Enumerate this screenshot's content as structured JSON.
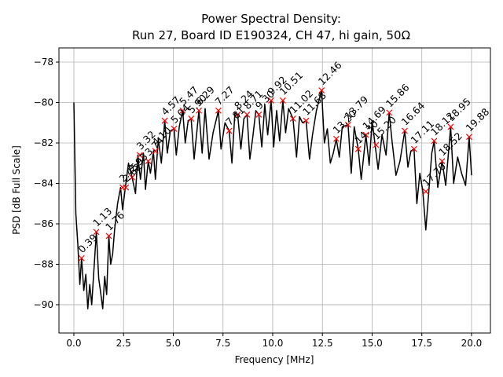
{
  "chart_data": {
    "type": "line",
    "title": "Power Spectral Density:",
    "subtitle": "Run 27, Board ID E190324, CH 47, hi gain, 50Ω",
    "xlabel": "Frequency [MHz]",
    "ylabel": "PSD [dB Full Scale]",
    "xlim": [
      -0.75,
      20.95
    ],
    "ylim": [
      -91.4,
      -77.3
    ],
    "x_ticks": [
      0.0,
      2.5,
      5.0,
      7.5,
      10.0,
      12.5,
      15.0,
      17.5,
      20.0
    ],
    "x_tick_labels": [
      "0.0",
      "2.5",
      "5.0",
      "7.5",
      "10.0",
      "12.5",
      "15.0",
      "17.5",
      "20.0"
    ],
    "y_ticks": [
      -90,
      -88,
      -86,
      -84,
      -82,
      -80,
      -78
    ],
    "y_tick_labels": [
      "−90",
      "−88",
      "−86",
      "−84",
      "−82",
      "−80",
      "−78"
    ],
    "grid": true,
    "series": [
      {
        "color": "#000000",
        "x": [
          0.0,
          0.1,
          0.2,
          0.3,
          0.39,
          0.5,
          0.6,
          0.7,
          0.8,
          0.9,
          1.0,
          1.13,
          1.25,
          1.35,
          1.45,
          1.55,
          1.65,
          1.76,
          1.85,
          1.95,
          2.05,
          2.2,
          2.35,
          2.45,
          2.6,
          2.75,
          2.93,
          3.1,
          3.22,
          3.35,
          3.5,
          3.6,
          3.74,
          3.85,
          4.0,
          4.1,
          4.25,
          4.4,
          4.57,
          4.7,
          4.85,
          5.04,
          5.15,
          5.3,
          5.47,
          5.6,
          5.75,
          5.9,
          6.05,
          6.29,
          6.45,
          6.6,
          6.8,
          7.0,
          7.27,
          7.4,
          7.6,
          7.81,
          7.95,
          8.1,
          8.24,
          8.4,
          8.55,
          8.71,
          8.85,
          9.0,
          9.15,
          9.3,
          9.45,
          9.6,
          9.75,
          9.92,
          10.05,
          10.2,
          10.35,
          10.51,
          10.65,
          10.8,
          11.02,
          11.2,
          11.35,
          11.5,
          11.68,
          11.85,
          12.0,
          12.2,
          12.46,
          12.6,
          12.75,
          12.9,
          13.05,
          13.2,
          13.35,
          13.5,
          13.79,
          13.95,
          14.1,
          14.3,
          14.45,
          14.69,
          14.85,
          15.0,
          15.15,
          15.3,
          15.5,
          15.7,
          15.86,
          16.0,
          16.2,
          16.4,
          16.64,
          16.8,
          16.95,
          17.11,
          17.25,
          17.4,
          17.55,
          17.7,
          17.85,
          18.0,
          18.12,
          18.3,
          18.52,
          18.7,
          18.95,
          19.1,
          19.3,
          19.5,
          19.7,
          19.88,
          20.0
        ],
        "values": [
          -80.0,
          -85.5,
          -87.0,
          -89.0,
          -87.7,
          -89.3,
          -88.5,
          -90.2,
          -89.0,
          -90.0,
          -88.4,
          -86.4,
          -88.7,
          -89.4,
          -90.2,
          -88.6,
          -89.5,
          -86.6,
          -88.0,
          -87.5,
          -86.3,
          -85.0,
          -84.2,
          -85.3,
          -84.1,
          -83.0,
          -83.7,
          -84.5,
          -82.6,
          -83.8,
          -82.5,
          -84.3,
          -82.9,
          -83.5,
          -82.4,
          -83.8,
          -81.8,
          -83.0,
          -80.9,
          -82.5,
          -81.4,
          -81.3,
          -82.6,
          -81.2,
          -80.4,
          -82.0,
          -80.9,
          -80.8,
          -82.8,
          -80.4,
          -82.5,
          -80.3,
          -82.8,
          -81.5,
          -80.4,
          -82.3,
          -81.0,
          -81.4,
          -83.0,
          -80.5,
          -80.6,
          -82.3,
          -80.8,
          -80.6,
          -82.8,
          -81.7,
          -80.4,
          -80.6,
          -82.2,
          -80.1,
          -81.6,
          -79.9,
          -82.2,
          -80.4,
          -81.9,
          -79.9,
          -81.5,
          -80.3,
          -80.8,
          -82.7,
          -80.7,
          -81.0,
          -80.9,
          -82.8,
          -81.6,
          -80.4,
          -79.4,
          -82.0,
          -81.3,
          -83.0,
          -82.5,
          -81.8,
          -82.7,
          -81.2,
          -81.1,
          -83.5,
          -81.2,
          -82.3,
          -83.8,
          -81.6,
          -83.1,
          -80.9,
          -82.1,
          -83.3,
          -81.6,
          -82.6,
          -80.5,
          -81.9,
          -83.6,
          -82.9,
          -81.4,
          -83.2,
          -82.4,
          -82.3,
          -85.0,
          -83.5,
          -84.4,
          -86.3,
          -84.4,
          -82.5,
          -81.9,
          -84.2,
          -82.9,
          -84.1,
          -81.2,
          -84.0,
          -82.7,
          -83.5,
          -84.1,
          -81.7,
          -83.6
        ]
      }
    ],
    "peaks": [
      {
        "label": "0.39",
        "x": 0.39,
        "y": -87.7
      },
      {
        "label": "1.13",
        "x": 1.13,
        "y": -86.4
      },
      {
        "label": "1.76",
        "x": 1.76,
        "y": -86.6
      },
      {
        "label": "2.45",
        "x": 2.45,
        "y": -84.2
      },
      {
        "label": "2.62",
        "x": 2.62,
        "y": -84.2
      },
      {
        "label": "2.93",
        "x": 2.93,
        "y": -83.7
      },
      {
        "label": "3.32",
        "x": 3.32,
        "y": -82.6
      },
      {
        "label": "3.74",
        "x": 3.74,
        "y": -82.9
      },
      {
        "label": "4.10",
        "x": 4.1,
        "y": -82.4
      },
      {
        "label": "4.57",
        "x": 4.57,
        "y": -80.9
      },
      {
        "label": "5.04",
        "x": 5.04,
        "y": -81.3
      },
      {
        "label": "5.47",
        "x": 5.47,
        "y": -80.4
      },
      {
        "label": "5.90",
        "x": 5.9,
        "y": -80.8
      },
      {
        "label": "6.29",
        "x": 6.29,
        "y": -80.4
      },
      {
        "label": "7.27",
        "x": 7.27,
        "y": -80.4
      },
      {
        "label": "7.81",
        "x": 7.81,
        "y": -81.4
      },
      {
        "label": "8.24",
        "x": 8.24,
        "y": -80.6
      },
      {
        "label": "8.71",
        "x": 8.71,
        "y": -80.6
      },
      {
        "label": "9.30",
        "x": 9.3,
        "y": -80.6
      },
      {
        "label": "9.92",
        "x": 9.92,
        "y": -79.9
      },
      {
        "label": "10.51",
        "x": 10.51,
        "y": -79.9
      },
      {
        "label": "11.02",
        "x": 11.02,
        "y": -80.8
      },
      {
        "label": "11.68",
        "x": 11.68,
        "y": -80.9
      },
      {
        "label": "12.46",
        "x": 12.46,
        "y": -79.4
      },
      {
        "label": "13.20",
        "x": 13.2,
        "y": -81.8
      },
      {
        "label": "13.79",
        "x": 13.79,
        "y": -81.1
      },
      {
        "label": "14.30",
        "x": 14.3,
        "y": -82.3
      },
      {
        "label": "14.69",
        "x": 14.69,
        "y": -81.6
      },
      {
        "label": "15.20",
        "x": 15.2,
        "y": -82.1
      },
      {
        "label": "15.86",
        "x": 15.86,
        "y": -80.5
      },
      {
        "label": "16.64",
        "x": 16.64,
        "y": -81.4
      },
      {
        "label": "17.11",
        "x": 17.11,
        "y": -82.3
      },
      {
        "label": "17.70",
        "x": 17.7,
        "y": -84.4
      },
      {
        "label": "18.12",
        "x": 18.12,
        "y": -81.9
      },
      {
        "label": "18.52",
        "x": 18.52,
        "y": -82.9
      },
      {
        "label": "18.95",
        "x": 18.95,
        "y": -81.2
      },
      {
        "label": "19.88",
        "x": 19.88,
        "y": -81.7
      }
    ]
  }
}
